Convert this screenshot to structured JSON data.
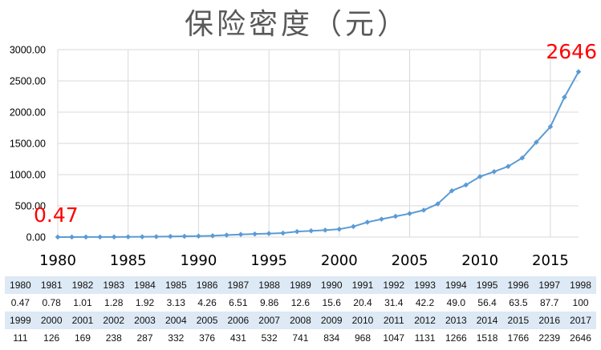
{
  "chart_data": {
    "type": "line",
    "title": "保险密度（元）",
    "xlabel": "",
    "ylabel": "",
    "x": [
      1980,
      1981,
      1982,
      1983,
      1984,
      1985,
      1986,
      1987,
      1988,
      1989,
      1990,
      1991,
      1992,
      1993,
      1994,
      1995,
      1996,
      1997,
      1998,
      1999,
      2000,
      2001,
      2002,
      2003,
      2004,
      2005,
      2006,
      2007,
      2008,
      2009,
      2010,
      2011,
      2012,
      2013,
      2014,
      2015,
      2016,
      2017
    ],
    "values": [
      0.47,
      0.78,
      1.01,
      1.28,
      1.92,
      3.13,
      4.26,
      6.51,
      9.86,
      12.6,
      15.6,
      20.4,
      31.4,
      42.2,
      49.0,
      56.4,
      63.5,
      87.7,
      100,
      111,
      126,
      169,
      238,
      287,
      332,
      376,
      431,
      532,
      741,
      834,
      968,
      1047,
      1131,
      1266,
      1518,
      1766,
      2239,
      2646
    ],
    "ylim": [
      0,
      3000
    ],
    "y_ticks": [
      "0.00",
      "500.00",
      "1000.00",
      "1500.00",
      "2000.00",
      "2500.00",
      "3000.00"
    ],
    "x_tick_labels": [
      "1980",
      "1985",
      "1990",
      "1995",
      "2000",
      "2005",
      "2010",
      "2015"
    ],
    "grid": true,
    "line_color": "#5b9bd5",
    "annotations": [
      {
        "text": "0.47",
        "year": 1980,
        "color": "#ff0000"
      },
      {
        "text": "2646",
        "year": 2017,
        "color": "#ff0000"
      }
    ]
  },
  "table": {
    "rows": [
      [
        "1980",
        "1981",
        "1982",
        "1983",
        "1984",
        "1985",
        "1986",
        "1987",
        "1988",
        "1989",
        "1990",
        "1991",
        "1992",
        "1993",
        "1994",
        "1995",
        "1996",
        "1997",
        "1998"
      ],
      [
        "0.47",
        "0.78",
        "1.01",
        "1.28",
        "1.92",
        "3.13",
        "4.26",
        "6.51",
        "9.86",
        "12.6",
        "15.6",
        "20.4",
        "31.4",
        "42.2",
        "49.0",
        "56.4",
        "63.5",
        "87.7",
        "100"
      ],
      [
        "1999",
        "2000",
        "2001",
        "2002",
        "2003",
        "2004",
        "2005",
        "2006",
        "2007",
        "2008",
        "2009",
        "2010",
        "2011",
        "2012",
        "2013",
        "2014",
        "2015",
        "2016",
        "2017"
      ],
      [
        "111",
        "126",
        "169",
        "238",
        "287",
        "332",
        "376",
        "431",
        "532",
        "741",
        "834",
        "968",
        "1047",
        "1131",
        "1266",
        "1518",
        "1766",
        "2239",
        "2646"
      ]
    ]
  }
}
